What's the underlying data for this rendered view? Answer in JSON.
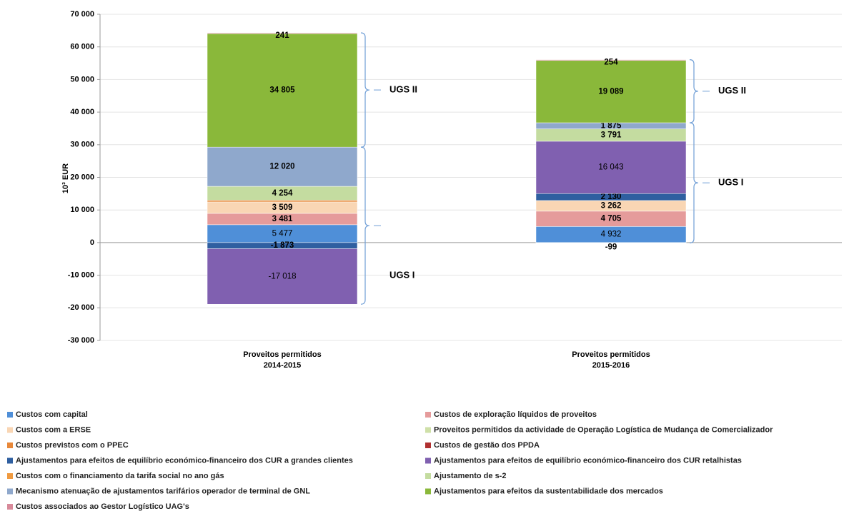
{
  "chart_data": {
    "type": "stacked_bar",
    "y_label": "10³ EUR",
    "categories": [
      "Proveitos permitidos 2014-2015",
      "Proveitos permitidos 2015-2016"
    ],
    "ylim": [
      -30000,
      70000
    ],
    "yticks": [
      {
        "value": -30000,
        "label": "-30 000"
      },
      {
        "value": -20000,
        "label": "-20 000"
      },
      {
        "value": -10000,
        "label": "-10 000"
      },
      0,
      {
        "value": 10000,
        "label": "10 000"
      },
      {
        "value": 20000,
        "label": "20 000"
      },
      {
        "value": 30000,
        "label": "30 000"
      },
      {
        "value": 40000,
        "label": "40 000"
      },
      {
        "value": 50000,
        "label": "50 000"
      },
      {
        "value": 60000,
        "label": "60 000"
      },
      {
        "value": 70000,
        "label": "70 000"
      }
    ],
    "grid": true,
    "annotations": [
      "UGS I",
      "UGS II"
    ],
    "series": [
      {
        "name": "Custos com capital",
        "color": "#4f8fd8",
        "values": [
          5477,
          4932
        ],
        "value_labels": [
          "5 477",
          "4 932"
        ]
      },
      {
        "name": "Custos de exploração líquidos de proveitos",
        "color": "#e59b9b",
        "values": [
          3481,
          4705
        ],
        "value_labels": [
          "3 481",
          "4 705"
        ]
      },
      {
        "name": "Custos com a ERSE",
        "color": "#f9d6b4",
        "values": [
          3509,
          3262
        ],
        "value_labels": [
          "3 509",
          "3 262"
        ]
      },
      {
        "name": "Proveitos permitidos da actividade de Operação Logística de Mudança de Comercializador",
        "color": "#cfe0a8",
        "values": [
          null,
          -99
        ],
        "value_labels": [
          null,
          "-99"
        ]
      },
      {
        "name": "Custos previstos com o PPEC",
        "color": "#e8883a",
        "values": [
          526,
          null
        ],
        "value_labels": [
          "526",
          null
        ]
      },
      {
        "name": "Custos de gestão dos PPDA",
        "color": "#b03030",
        "values": [
          null,
          null
        ]
      },
      {
        "name": "Ajustamentos para efeitos de equilíbrio económico-financeiro dos CUR a grandes clientes",
        "color": "#2f5fa0",
        "values": [
          -1873,
          2130
        ],
        "value_labels": [
          "-1 873",
          "2 130"
        ]
      },
      {
        "name": "Ajustamentos para efeitos de equilíbrio económico-financeiro dos CUR retalhistas",
        "color": "#8060b0",
        "values": [
          -17018,
          16043
        ],
        "value_labels": [
          "-17 018",
          "16 043"
        ]
      },
      {
        "name": "Custos com o financiamento da tarifa social no ano gás",
        "color": "#f09a40",
        "values": [
          null,
          null
        ]
      },
      {
        "name": "Ajustamento de s-2",
        "color": "#c4dca0",
        "values": [
          4254,
          3791
        ],
        "value_labels": [
          "4 254",
          "3 791"
        ]
      },
      {
        "name": "Mecanismo atenuação de ajustamentos tarifários operador de terminal de GNL",
        "color": "#8fa8cc",
        "values": [
          12020,
          1875
        ],
        "value_labels": [
          "12 020",
          "1 875"
        ]
      },
      {
        "name": "Ajustamentos para efeitos da sustentabilidade dos mercados",
        "color": "#8ab83a",
        "values": [
          34805,
          19089
        ],
        "value_labels": [
          "34 805",
          "19 089"
        ]
      },
      {
        "name": "Custos associados ao Gestor Logístico UAG's",
        "color": "#d88a9a",
        "values": [
          241,
          254
        ],
        "value_labels": [
          "241",
          "254"
        ]
      }
    ]
  }
}
